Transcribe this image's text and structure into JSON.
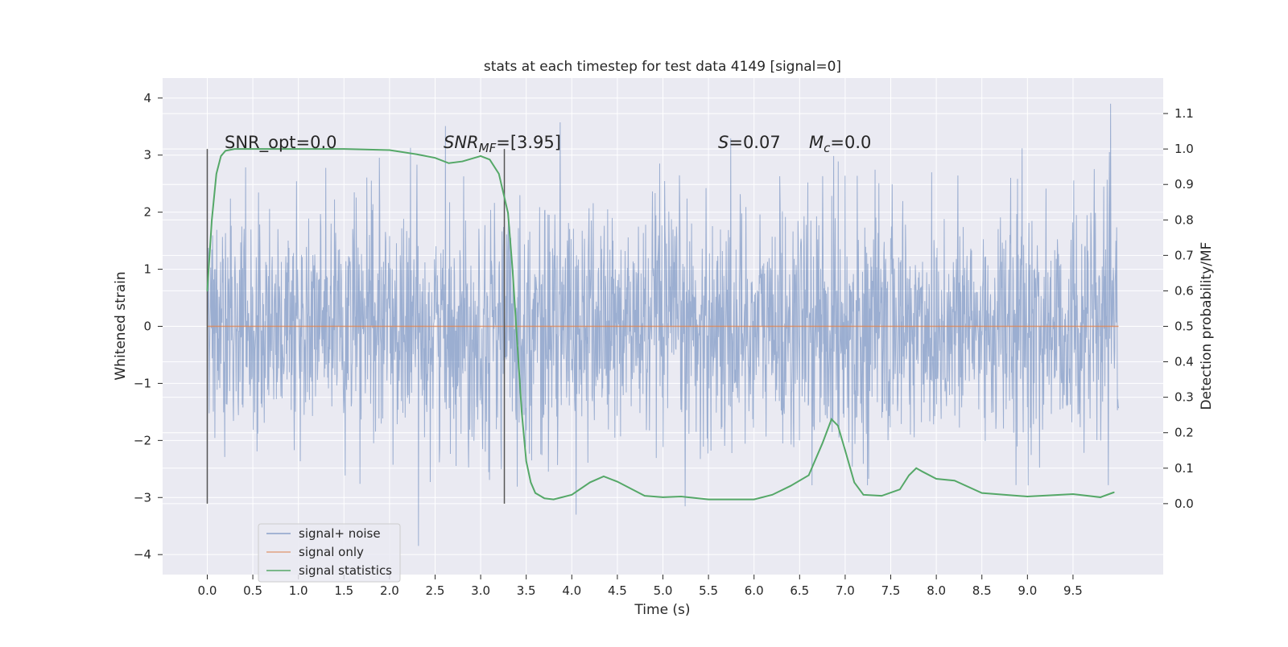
{
  "chart_data": {
    "type": "line",
    "title": "stats at each timestep for test data 4149 [signal=0]",
    "xlabel": "Time (s)",
    "ylabel": "Whitened strain",
    "ylabel_right": "Detection probability/MF",
    "xlim": [
      -0.49,
      10.49
    ],
    "ylim": [
      -4.35,
      4.35
    ],
    "ylim_right": [
      -0.2,
      1.2
    ],
    "x_ticks": [
      0.0,
      0.5,
      1.0,
      1.5,
      2.0,
      2.5,
      3.0,
      3.5,
      4.0,
      4.5,
      5.0,
      5.5,
      6.0,
      6.5,
      7.0,
      7.5,
      8.0,
      8.5,
      9.0,
      9.5
    ],
    "x_tick_labels": [
      "0.0",
      "0.5",
      "1.0",
      "1.5",
      "2.0",
      "2.5",
      "3.0",
      "3.5",
      "4.0",
      "4.5",
      "5.0",
      "5.5",
      "6.0",
      "6.5",
      "7.0",
      "7.5",
      "8.0",
      "8.5",
      "9.0",
      "9.5"
    ],
    "y_ticks": [
      4,
      3,
      2,
      1,
      0,
      -1,
      -2,
      -3,
      -4
    ],
    "y_tick_labels": [
      "4",
      "3",
      "2",
      "1",
      "0",
      "−1",
      "−2",
      "−3",
      "−4"
    ],
    "y_right_ticks": [
      1.1,
      1.0,
      0.9,
      0.8,
      0.7,
      0.6,
      0.5,
      0.4,
      0.3,
      0.2,
      0.1,
      0.0
    ],
    "y_right_tick_labels": [
      "1.1",
      "1.0",
      "0.9",
      "0.8",
      "0.7",
      "0.6",
      "0.5",
      "0.4",
      "0.3",
      "0.2",
      "0.1",
      "0.0"
    ],
    "grid": true,
    "legend_position": "lower-left",
    "colors": {
      "signal_noise": "#4c72b0",
      "signal_only": "#dd8452",
      "signal_statistics": "#55a868",
      "vline": "#555555",
      "plot_bg": "#eaeaf2",
      "grid": "#ffffff"
    },
    "series": [
      {
        "name": "signal+ noise",
        "kind": "noise",
        "x_range": [
          0.0,
          10.0
        ],
        "typical_amplitude": 1.0,
        "peak_max": 3.9,
        "peak_min": -4.1
      },
      {
        "name": "signal only",
        "kind": "flat",
        "x": [
          0.0,
          10.0
        ],
        "y": [
          0.0,
          0.0
        ]
      },
      {
        "name": "signal statistics",
        "kind": "line",
        "axis": "right",
        "x": [
          0.0,
          0.05,
          0.1,
          0.15,
          0.2,
          0.3,
          0.5,
          1.0,
          1.5,
          2.0,
          2.3,
          2.5,
          2.65,
          2.8,
          3.0,
          3.1,
          3.2,
          3.3,
          3.35,
          3.4,
          3.45,
          3.5,
          3.55,
          3.6,
          3.7,
          3.8,
          4.0,
          4.2,
          4.35,
          4.5,
          4.8,
          5.0,
          5.2,
          5.5,
          6.0,
          6.2,
          6.4,
          6.6,
          6.75,
          6.85,
          6.92,
          7.0,
          7.1,
          7.2,
          7.4,
          7.6,
          7.7,
          7.78,
          7.85,
          8.0,
          8.2,
          8.5,
          9.0,
          9.5,
          9.8,
          9.95
        ],
        "y": [
          0.6,
          0.8,
          0.93,
          0.98,
          0.995,
          1.0,
          1.0,
          1.0,
          1.0,
          0.997,
          0.985,
          0.975,
          0.96,
          0.965,
          0.98,
          0.97,
          0.93,
          0.82,
          0.66,
          0.46,
          0.26,
          0.12,
          0.06,
          0.03,
          0.015,
          0.012,
          0.025,
          0.06,
          0.077,
          0.062,
          0.022,
          0.018,
          0.02,
          0.012,
          0.012,
          0.025,
          0.05,
          0.08,
          0.17,
          0.238,
          0.22,
          0.15,
          0.06,
          0.025,
          0.022,
          0.04,
          0.08,
          0.1,
          0.09,
          0.07,
          0.065,
          0.03,
          0.02,
          0.027,
          0.018,
          0.032
        ]
      }
    ],
    "vlines": [
      0.0,
      3.26
    ],
    "vline_range": [
      0.0,
      1.0
    ],
    "annotations": {
      "snr_opt": "SNR_opt=0.0",
      "snr_mf_sym": "SNR",
      "snr_mf_sub": "MF",
      "snr_mf_val": "=[3.95]",
      "s_sym": "S",
      "s_val": "=0.07",
      "mc_sym": "M",
      "mc_sub": "c",
      "mc_val": "=0.0"
    }
  }
}
